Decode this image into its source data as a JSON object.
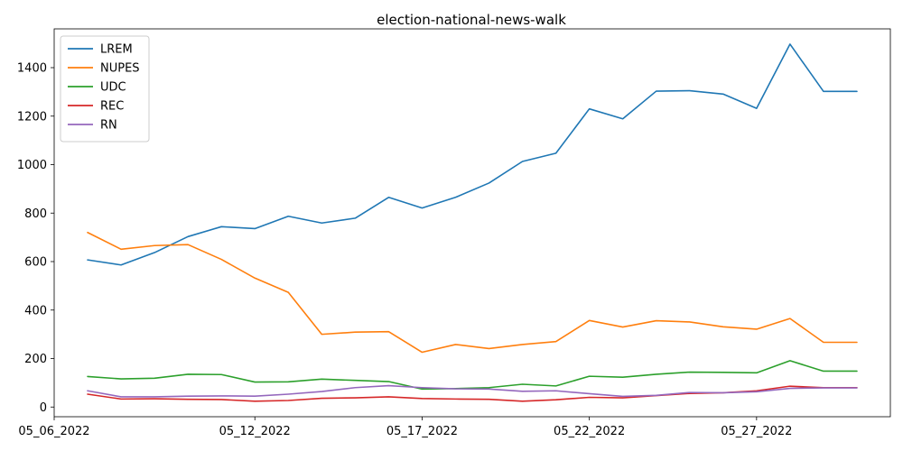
{
  "chart_data": {
    "type": "line",
    "title": "election-national-news-walk",
    "xlabel": "",
    "ylabel": "",
    "x": [
      "2022-05-07",
      "2022-05-08",
      "2022-05-09",
      "2022-05-10",
      "2022-05-11",
      "2022-05-12",
      "2022-05-13",
      "2022-05-14",
      "2022-05-15",
      "2022-05-16",
      "2022-05-17",
      "2022-05-18",
      "2022-05-19",
      "2022-05-20",
      "2022-05-21",
      "2022-05-22",
      "2022-05-23",
      "2022-05-24",
      "2022-05-25",
      "2022-05-26",
      "2022-05-27",
      "2022-05-28",
      "2022-05-29",
      "2022-05-30"
    ],
    "xlim": [
      "2022-05-06",
      "2022-05-31"
    ],
    "x_ticks": [
      {
        "date": "2022-05-06",
        "label": "05_06_2022"
      },
      {
        "date": "2022-05-12",
        "label": "05_12_2022"
      },
      {
        "date": "2022-05-17",
        "label": "05_17_2022"
      },
      {
        "date": "2022-05-22",
        "label": "05_22_2022"
      },
      {
        "date": "2022-05-27",
        "label": "05_27_2022"
      }
    ],
    "ylim": [
      -40,
      1560
    ],
    "y_ticks": [
      0,
      200,
      400,
      600,
      800,
      1000,
      1200,
      1400
    ],
    "grid": false,
    "legend": "top-left",
    "series": [
      {
        "name": "LREM",
        "color": "#1f77b4",
        "values": [
          607,
          586,
          637,
          703,
          744,
          736,
          787,
          759,
          779,
          865,
          821,
          865,
          924,
          1013,
          1047,
          1230,
          1189,
          1303,
          1305,
          1291,
          1232,
          1497,
          1302,
          1302
        ]
      },
      {
        "name": "NUPES",
        "color": "#ff7f0e",
        "values": [
          720,
          651,
          666,
          670,
          609,
          532,
          473,
          300,
          309,
          311,
          226,
          258,
          241,
          258,
          270,
          357,
          330,
          356,
          351,
          331,
          321,
          365,
          267,
          267
        ]
      },
      {
        "name": "UDC",
        "color": "#2ca02c",
        "values": [
          126,
          116,
          119,
          135,
          134,
          103,
          104,
          115,
          110,
          105,
          74,
          76,
          80,
          94,
          87,
          127,
          123,
          135,
          144,
          143,
          141,
          191,
          148,
          148
        ]
      },
      {
        "name": "REC",
        "color": "#d62728",
        "values": [
          53,
          33,
          34,
          32,
          31,
          24,
          27,
          36,
          38,
          42,
          35,
          33,
          32,
          24,
          30,
          40,
          38,
          47,
          56,
          59,
          67,
          86,
          80,
          80
        ]
      },
      {
        "name": "RN",
        "color": "#9467bd",
        "values": [
          67,
          42,
          42,
          45,
          46,
          45,
          53,
          64,
          80,
          88,
          80,
          75,
          74,
          65,
          67,
          55,
          44,
          48,
          60,
          59,
          63,
          77,
          79,
          79
        ]
      }
    ]
  }
}
